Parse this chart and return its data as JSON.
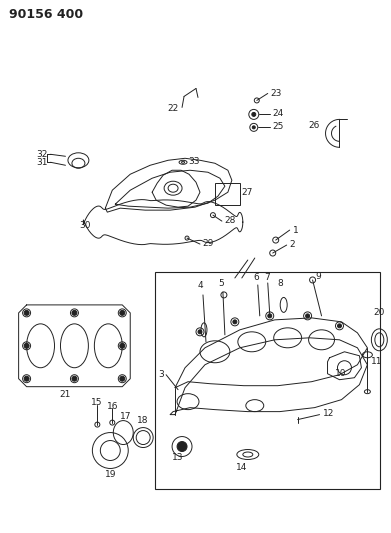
{
  "title": "90156 400",
  "bg_color": "#ffffff",
  "line_color": "#222222",
  "fig_width": 3.91,
  "fig_height": 5.33,
  "dpi": 100
}
